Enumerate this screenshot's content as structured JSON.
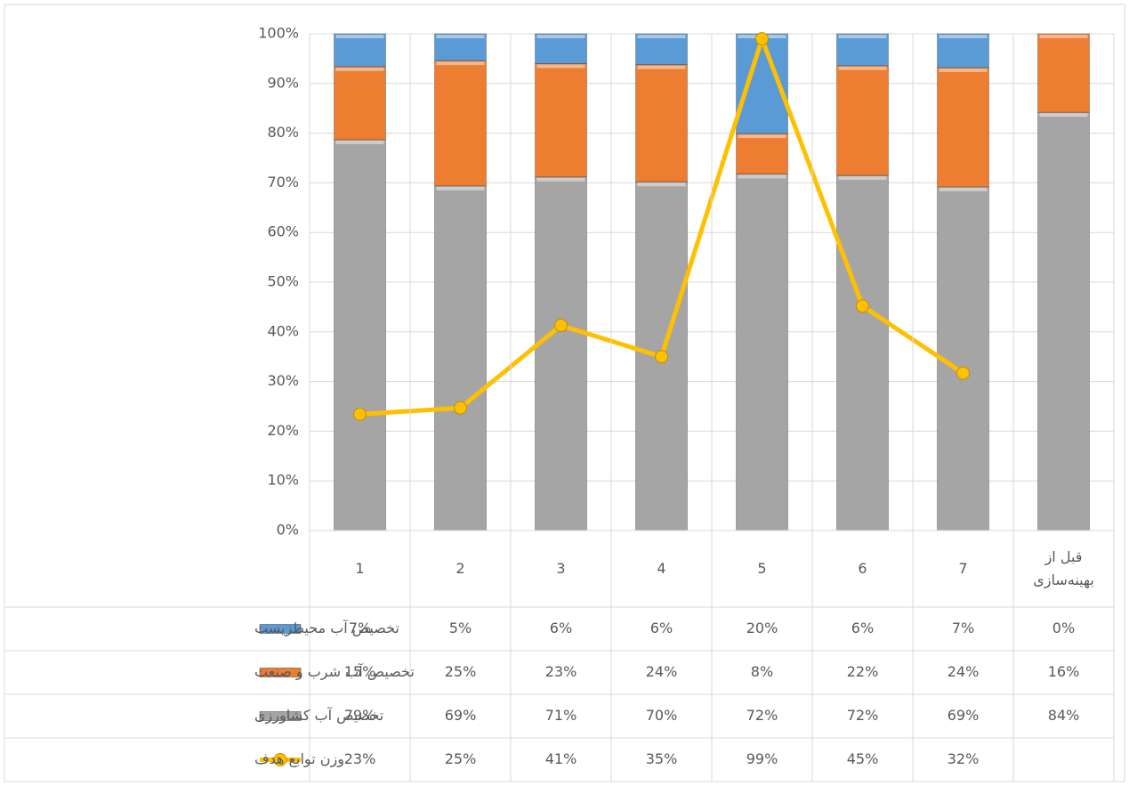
{
  "chart_data": {
    "type": "bar",
    "categories": [
      "1",
      "2",
      "3",
      "4",
      "5",
      "6",
      "7",
      "قبل از بهینه‌سازی"
    ],
    "series": [
      {
        "name": "تخصیص آب کشاورزی",
        "color": "#a5a5a5",
        "values": [
          78.7,
          69.4,
          71.2,
          70.2,
          71.8,
          71.5,
          69.2,
          84.2
        ],
        "value_labels": [
          "79%",
          "69%",
          "71%",
          "70%",
          "72%",
          "72%",
          "69%",
          "84%"
        ]
      },
      {
        "name": "تخصیص آب شرب و صنعت",
        "color": "#ed7d31",
        "values": [
          14.7,
          25.2,
          22.8,
          23.6,
          8.1,
          22.1,
          24.0,
          15.8
        ],
        "value_labels": [
          "15%",
          "25%",
          "23%",
          "24%",
          "8%",
          "22%",
          "24%",
          "16%"
        ]
      },
      {
        "name": "تخصیص آب محیطزیست",
        "color": "#5b9bd5",
        "values": [
          6.6,
          5.4,
          6.0,
          6.2,
          20.1,
          6.4,
          6.8,
          0
        ],
        "value_labels": [
          "7%",
          "5%",
          "6%",
          "6%",
          "20%",
          "6%",
          "7%",
          "0%"
        ]
      },
      {
        "name": "وزن توابع هدف",
        "type": "line",
        "color": "#ffc000",
        "values": [
          23.4,
          24.7,
          41.3,
          35.0,
          99.0,
          45.2,
          31.7,
          null
        ],
        "value_labels": [
          "23%",
          "25%",
          "41%",
          "35%",
          "99%",
          "45%",
          "32%",
          null
        ]
      }
    ],
    "stacked": true,
    "ylim": [
      0,
      100
    ],
    "yticks": [
      {
        "value": 0,
        "label": "0%"
      },
      {
        "value": 10,
        "label": "10%"
      },
      {
        "value": 20,
        "label": "20%"
      },
      {
        "value": 30,
        "label": "30%"
      },
      {
        "value": 40,
        "label": "40%"
      },
      {
        "value": 50,
        "label": "50%"
      },
      {
        "value": 60,
        "label": "60%"
      },
      {
        "value": 70,
        "label": "70%"
      },
      {
        "value": 80,
        "label": "80%"
      },
      {
        "value": 90,
        "label": "90%"
      },
      {
        "value": 100,
        "label": "100%"
      }
    ],
    "grid": true
  }
}
